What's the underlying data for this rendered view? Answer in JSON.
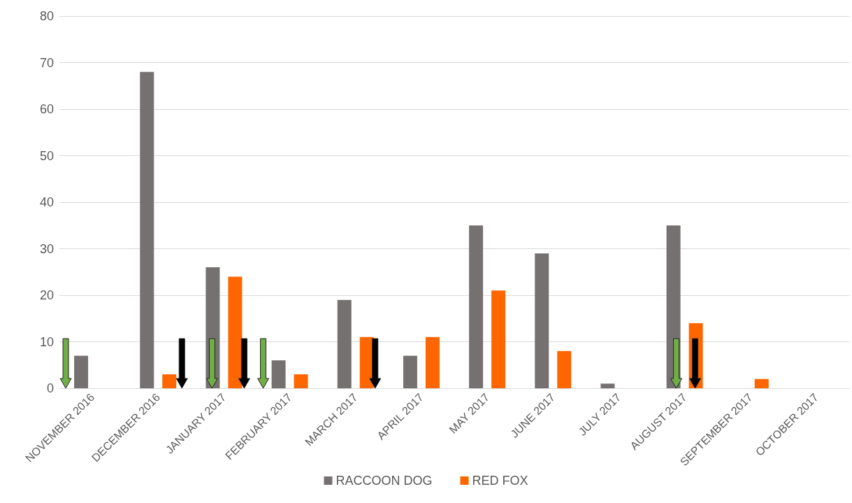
{
  "chart_data": {
    "type": "bar",
    "categories": [
      "NOVEMBER 2016",
      "DECEMBER 2016",
      "JANUARY 2017",
      "FEBRUARY 2017",
      "MARCH 2017",
      "APRIL 2017",
      "MAY 2017",
      "JUNE 2017",
      "JULY 2017",
      "AUGUST 2017",
      "SEPTEMBER 2017",
      "OCTOBER 2017"
    ],
    "series": [
      {
        "name": "RACCOON DOG",
        "color": "#767171",
        "values": [
          7,
          68,
          26,
          6,
          19,
          7,
          35,
          29,
          1,
          35,
          0,
          0
        ]
      },
      {
        "name": "RED FOX",
        "color": "#ff6600",
        "values": [
          0,
          3,
          24,
          3,
          11,
          11,
          21,
          8,
          0,
          14,
          2,
          0
        ]
      }
    ],
    "ylim": [
      0,
      80
    ],
    "yticks": [
      0,
      10,
      20,
      30,
      40,
      50,
      60,
      70,
      80
    ],
    "grid": "y",
    "legend": "bottom"
  }
}
